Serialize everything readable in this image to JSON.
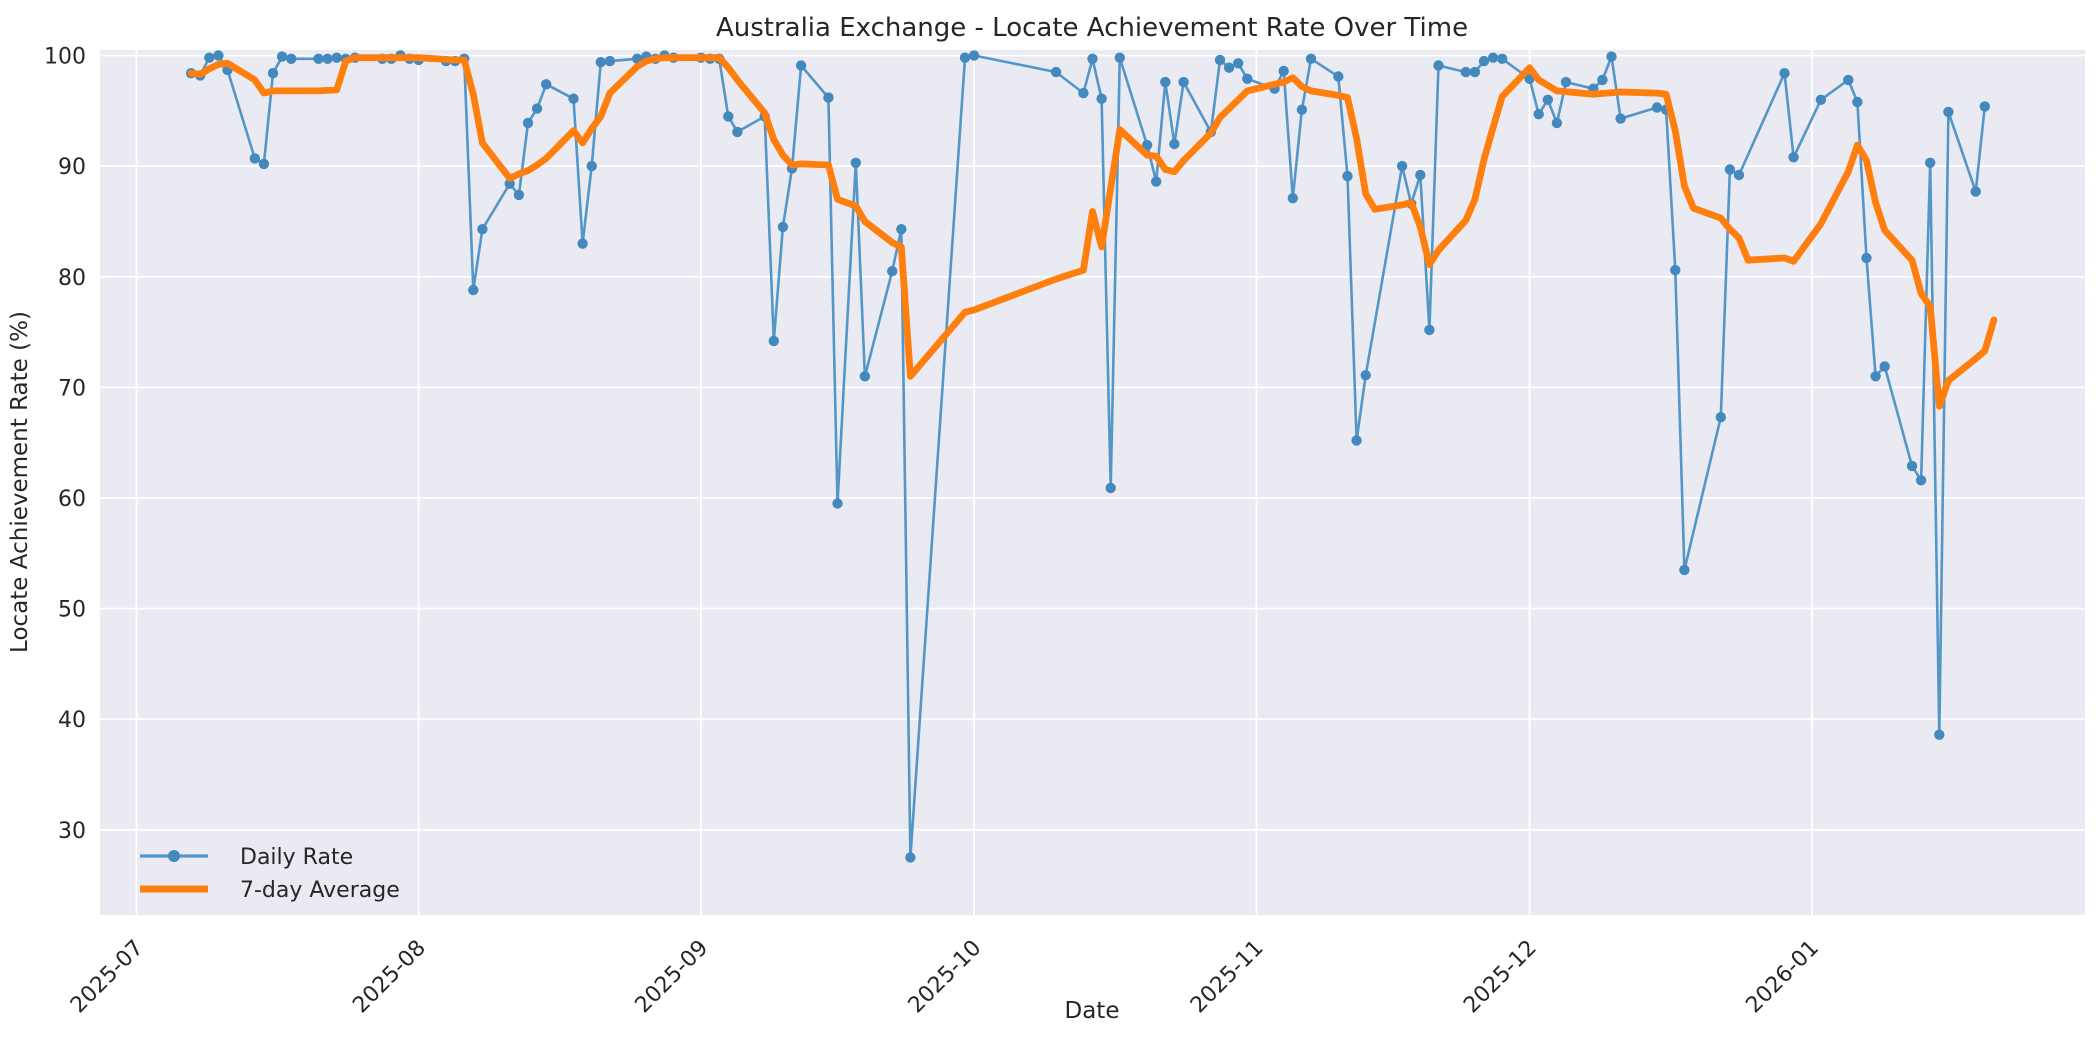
{
  "chart_data": {
    "type": "line",
    "title": "Australia Exchange - Locate Achievement Rate Over Time",
    "xlabel": "Date",
    "ylabel": "Locate Achievement Rate (%)",
    "xlim": [
      "2025-06-27",
      "2026-01-31"
    ],
    "ylim": [
      22.3,
      100.5
    ],
    "grid": true,
    "legend_position": "lower left",
    "plot_bg_color": "#eaeaf2",
    "grid_color": "#ffffff",
    "text_color": "#262626",
    "y_ticks": [
      30,
      40,
      50,
      60,
      70,
      80,
      90,
      100
    ],
    "x_ticks": [
      {
        "date": "2025-07-01",
        "label": "2025-07"
      },
      {
        "date": "2025-08-01",
        "label": "2025-08"
      },
      {
        "date": "2025-09-01",
        "label": "2025-09"
      },
      {
        "date": "2025-10-01",
        "label": "2025-10"
      },
      {
        "date": "2025-11-01",
        "label": "2025-11"
      },
      {
        "date": "2025-12-01",
        "label": "2025-12"
      },
      {
        "date": "2026-01-01",
        "label": "2026-01"
      }
    ],
    "series": [
      {
        "name": "Daily Rate",
        "color": "#5596c8",
        "marker_color": "#4489bd",
        "line_width": 2.6,
        "marker": "o",
        "points": [
          [
            "2025-07-07",
            98.4
          ],
          [
            "2025-07-08",
            98.2
          ],
          [
            "2025-07-09",
            99.8
          ],
          [
            "2025-07-10",
            100.0
          ],
          [
            "2025-07-11",
            98.7
          ],
          [
            "2025-07-14",
            90.7
          ],
          [
            "2025-07-15",
            90.2
          ],
          [
            "2025-07-16",
            98.4
          ],
          [
            "2025-07-17",
            99.9
          ],
          [
            "2025-07-18",
            99.7
          ],
          [
            "2025-07-21",
            99.7
          ],
          [
            "2025-07-22",
            99.7
          ],
          [
            "2025-07-23",
            99.8
          ],
          [
            "2025-07-24",
            99.7
          ],
          [
            "2025-07-25",
            99.8
          ],
          [
            "2025-07-28",
            99.7
          ],
          [
            "2025-07-29",
            99.7
          ],
          [
            "2025-07-30",
            100.0
          ],
          [
            "2025-07-31",
            99.7
          ],
          [
            "2025-08-01",
            99.6
          ],
          [
            "2025-08-04",
            99.5
          ],
          [
            "2025-08-05",
            99.5
          ],
          [
            "2025-08-06",
            99.7
          ],
          [
            "2025-08-07",
            78.8
          ],
          [
            "2025-08-08",
            84.3
          ],
          [
            "2025-08-11",
            88.4
          ],
          [
            "2025-08-12",
            87.4
          ],
          [
            "2025-08-13",
            93.9
          ],
          [
            "2025-08-14",
            95.2
          ],
          [
            "2025-08-15",
            97.4
          ],
          [
            "2025-08-18",
            96.1
          ],
          [
            "2025-08-19",
            83.0
          ],
          [
            "2025-08-20",
            90.0
          ],
          [
            "2025-08-21",
            99.4
          ],
          [
            "2025-08-22",
            99.5
          ],
          [
            "2025-08-25",
            99.7
          ],
          [
            "2025-08-26",
            99.9
          ],
          [
            "2025-08-27",
            99.7
          ],
          [
            "2025-08-28",
            100.0
          ],
          [
            "2025-08-29",
            99.8
          ],
          [
            "2025-09-01",
            99.8
          ],
          [
            "2025-09-02",
            99.7
          ],
          [
            "2025-09-03",
            99.7
          ],
          [
            "2025-09-04",
            94.5
          ],
          [
            "2025-09-05",
            93.1
          ],
          [
            "2025-09-08",
            94.5
          ],
          [
            "2025-09-09",
            74.2
          ],
          [
            "2025-09-10",
            84.5
          ],
          [
            "2025-09-11",
            89.8
          ],
          [
            "2025-09-12",
            99.1
          ],
          [
            "2025-09-15",
            96.2
          ],
          [
            "2025-09-16",
            59.5
          ],
          [
            "2025-09-18",
            90.3
          ],
          [
            "2025-09-19",
            71.0
          ],
          [
            "2025-09-22",
            80.5
          ],
          [
            "2025-09-23",
            84.3
          ],
          [
            "2025-09-24",
            27.5
          ],
          [
            "2025-09-30",
            99.8
          ],
          [
            "2025-10-01",
            100.0
          ],
          [
            "2025-10-10",
            98.5
          ],
          [
            "2025-10-13",
            96.6
          ],
          [
            "2025-10-14",
            99.7
          ],
          [
            "2025-10-15",
            96.1
          ],
          [
            "2025-10-16",
            60.9
          ],
          [
            "2025-10-17",
            99.8
          ],
          [
            "2025-10-20",
            91.9
          ],
          [
            "2025-10-21",
            88.6
          ],
          [
            "2025-10-22",
            97.6
          ],
          [
            "2025-10-23",
            92.0
          ],
          [
            "2025-10-24",
            97.6
          ],
          [
            "2025-10-27",
            93.1
          ],
          [
            "2025-10-28",
            99.6
          ],
          [
            "2025-10-29",
            98.9
          ],
          [
            "2025-10-30",
            99.3
          ],
          [
            "2025-10-31",
            97.9
          ],
          [
            "2025-11-03",
            97.0
          ],
          [
            "2025-11-04",
            98.6
          ],
          [
            "2025-11-05",
            87.1
          ],
          [
            "2025-11-06",
            95.1
          ],
          [
            "2025-11-07",
            99.7
          ],
          [
            "2025-11-10",
            98.1
          ],
          [
            "2025-11-11",
            89.1
          ],
          [
            "2025-11-12",
            65.2
          ],
          [
            "2025-11-13",
            71.1
          ],
          [
            "2025-11-17",
            90.0
          ],
          [
            "2025-11-18",
            86.6
          ],
          [
            "2025-11-19",
            89.2
          ],
          [
            "2025-11-20",
            75.2
          ],
          [
            "2025-11-21",
            99.1
          ],
          [
            "2025-11-24",
            98.5
          ],
          [
            "2025-11-25",
            98.5
          ],
          [
            "2025-11-26",
            99.5
          ],
          [
            "2025-11-27",
            99.8
          ],
          [
            "2025-11-28",
            99.7
          ],
          [
            "2025-12-01",
            97.9
          ],
          [
            "2025-12-02",
            94.7
          ],
          [
            "2025-12-03",
            96.0
          ],
          [
            "2025-12-04",
            93.9
          ],
          [
            "2025-12-05",
            97.6
          ],
          [
            "2025-12-08",
            97.0
          ],
          [
            "2025-12-09",
            97.8
          ],
          [
            "2025-12-10",
            99.9
          ],
          [
            "2025-12-11",
            94.3
          ],
          [
            "2025-12-15",
            95.3
          ],
          [
            "2025-12-16",
            95.1
          ],
          [
            "2025-12-17",
            80.6
          ],
          [
            "2025-12-18",
            53.5
          ],
          [
            "2025-12-22",
            67.3
          ],
          [
            "2025-12-23",
            89.7
          ],
          [
            "2025-12-24",
            89.2
          ],
          [
            "2025-12-29",
            98.4
          ],
          [
            "2025-12-30",
            90.8
          ],
          [
            "2026-01-02",
            96.0
          ],
          [
            "2026-01-05",
            97.8
          ],
          [
            "2026-01-06",
            95.8
          ],
          [
            "2026-01-07",
            81.7
          ],
          [
            "2026-01-08",
            71.0
          ],
          [
            "2026-01-09",
            71.9
          ],
          [
            "2026-01-12",
            62.9
          ],
          [
            "2026-01-13",
            61.6
          ],
          [
            "2026-01-14",
            90.3
          ],
          [
            "2026-01-15",
            38.6
          ],
          [
            "2026-01-16",
            94.9
          ],
          [
            "2026-01-19",
            87.7
          ],
          [
            "2026-01-20",
            95.4
          ]
        ]
      },
      {
        "name": "7-day Average",
        "color": "#ff7f0e",
        "line_width": 6.8,
        "marker": "none",
        "points": [
          [
            "2025-07-07",
            98.4
          ],
          [
            "2025-07-08",
            98.3
          ],
          [
            "2025-07-09",
            98.8
          ],
          [
            "2025-07-10",
            99.2
          ],
          [
            "2025-07-11",
            99.3
          ],
          [
            "2025-07-14",
            97.8
          ],
          [
            "2025-07-15",
            96.6
          ],
          [
            "2025-07-16",
            96.8
          ],
          [
            "2025-07-18",
            96.8
          ],
          [
            "2025-07-21",
            96.8
          ],
          [
            "2025-07-23",
            96.9
          ],
          [
            "2025-07-24",
            99.5
          ],
          [
            "2025-07-25",
            99.8
          ],
          [
            "2025-07-31",
            99.8
          ],
          [
            "2025-08-01",
            99.8
          ],
          [
            "2025-08-05",
            99.6
          ],
          [
            "2025-08-06",
            99.6
          ],
          [
            "2025-08-07",
            96.5
          ],
          [
            "2025-08-08",
            92.1
          ],
          [
            "2025-08-11",
            88.9
          ],
          [
            "2025-08-12",
            89.3
          ],
          [
            "2025-08-13",
            89.6
          ],
          [
            "2025-08-14",
            90.1
          ],
          [
            "2025-08-15",
            90.7
          ],
          [
            "2025-08-18",
            93.2
          ],
          [
            "2025-08-19",
            92.1
          ],
          [
            "2025-08-20",
            93.4
          ],
          [
            "2025-08-21",
            94.5
          ],
          [
            "2025-08-22",
            96.6
          ],
          [
            "2025-08-25",
            99.0
          ],
          [
            "2025-08-26",
            99.5
          ],
          [
            "2025-08-27",
            99.7
          ],
          [
            "2025-08-28",
            99.8
          ],
          [
            "2025-09-03",
            99.8
          ],
          [
            "2025-09-04",
            98.9
          ],
          [
            "2025-09-05",
            97.8
          ],
          [
            "2025-09-08",
            94.8
          ],
          [
            "2025-09-09",
            92.4
          ],
          [
            "2025-09-10",
            91.0
          ],
          [
            "2025-09-11",
            90.1
          ],
          [
            "2025-09-12",
            90.2
          ],
          [
            "2025-09-15",
            90.1
          ],
          [
            "2025-09-16",
            87.0
          ],
          [
            "2025-09-18",
            86.4
          ],
          [
            "2025-09-19",
            85.0
          ],
          [
            "2025-09-22",
            83.1
          ],
          [
            "2025-09-23",
            82.7
          ],
          [
            "2025-09-24",
            71.0
          ],
          [
            "2025-09-30",
            76.8
          ],
          [
            "2025-10-01",
            77.0
          ],
          [
            "2025-10-10",
            79.8
          ],
          [
            "2025-10-13",
            80.6
          ],
          [
            "2025-10-14",
            85.9
          ],
          [
            "2025-10-15",
            82.7
          ],
          [
            "2025-10-17",
            93.3
          ],
          [
            "2025-10-20",
            91.0
          ],
          [
            "2025-10-21",
            90.9
          ],
          [
            "2025-10-22",
            89.7
          ],
          [
            "2025-10-23",
            89.5
          ],
          [
            "2025-10-24",
            90.5
          ],
          [
            "2025-10-27",
            93.0
          ],
          [
            "2025-10-28",
            94.4
          ],
          [
            "2025-10-31",
            96.8
          ],
          [
            "2025-11-04",
            97.6
          ],
          [
            "2025-11-05",
            98.0
          ],
          [
            "2025-11-06",
            97.2
          ],
          [
            "2025-11-07",
            96.8
          ],
          [
            "2025-11-10",
            96.4
          ],
          [
            "2025-11-11",
            96.2
          ],
          [
            "2025-11-12",
            92.5
          ],
          [
            "2025-11-13",
            87.5
          ],
          [
            "2025-11-14",
            86.1
          ],
          [
            "2025-11-17",
            86.5
          ],
          [
            "2025-11-18",
            86.7
          ],
          [
            "2025-11-19",
            84.5
          ],
          [
            "2025-11-20",
            81.1
          ],
          [
            "2025-11-21",
            82.4
          ],
          [
            "2025-11-24",
            85.1
          ],
          [
            "2025-11-25",
            87.0
          ],
          [
            "2025-11-26",
            90.6
          ],
          [
            "2025-11-27",
            93.5
          ],
          [
            "2025-11-28",
            96.3
          ],
          [
            "2025-12-01",
            98.9
          ],
          [
            "2025-12-02",
            97.8
          ],
          [
            "2025-12-04",
            96.8
          ],
          [
            "2025-12-08",
            96.5
          ],
          [
            "2025-12-11",
            96.7
          ],
          [
            "2025-12-15",
            96.6
          ],
          [
            "2025-12-16",
            96.5
          ],
          [
            "2025-12-17",
            93.2
          ],
          [
            "2025-12-18",
            88.2
          ],
          [
            "2025-12-19",
            86.2
          ],
          [
            "2025-12-22",
            85.3
          ],
          [
            "2025-12-23",
            84.3
          ],
          [
            "2025-12-24",
            83.5
          ],
          [
            "2025-12-25",
            81.5
          ],
          [
            "2025-12-29",
            81.7
          ],
          [
            "2025-12-30",
            81.4
          ],
          [
            "2026-01-02",
            84.8
          ],
          [
            "2026-01-05",
            89.5
          ],
          [
            "2026-01-06",
            91.9
          ],
          [
            "2026-01-07",
            90.5
          ],
          [
            "2026-01-08",
            86.7
          ],
          [
            "2026-01-09",
            84.2
          ],
          [
            "2026-01-12",
            81.5
          ],
          [
            "2026-01-13",
            78.5
          ],
          [
            "2026-01-14",
            77.3
          ],
          [
            "2026-01-15",
            68.3
          ],
          [
            "2026-01-16",
            70.6
          ],
          [
            "2026-01-19",
            72.6
          ],
          [
            "2026-01-20",
            73.3
          ],
          [
            "2026-01-21",
            76.1
          ]
        ]
      }
    ]
  },
  "legend": {
    "items": [
      {
        "label": "Daily Rate"
      },
      {
        "label": "7-day Average"
      }
    ]
  }
}
